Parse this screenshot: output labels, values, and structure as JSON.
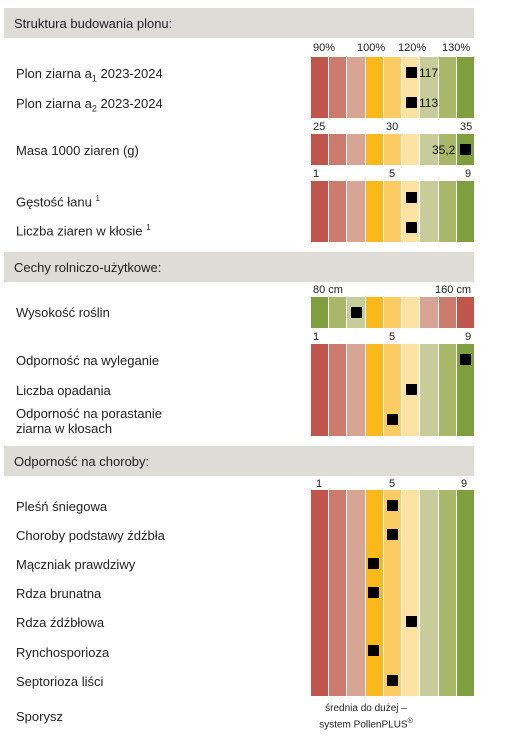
{
  "sections": [
    {
      "title": "Struktura budowania plonu:",
      "scale_labels": [
        "90%",
        "100%",
        "120%",
        "130%"
      ],
      "rows": [
        {
          "label_pre": "Plon ziarna a",
          "label_sub": "1",
          "label_post": " 2023-2024",
          "value": "117"
        },
        {
          "label_pre": "Plon ziarna a",
          "label_sub": "2",
          "label_post": " 2023-2024",
          "value": "113"
        }
      ]
    },
    {
      "scale_labels": [
        "25",
        "30",
        "35"
      ],
      "rows": [
        {
          "label": "Masa 1000 ziaren (g)",
          "value": "35,2"
        }
      ]
    },
    {
      "scale_labels": [
        "1",
        "5",
        "9"
      ],
      "rows": [
        {
          "label": "Gęstość łanu",
          "sup": "1",
          "score": 6
        },
        {
          "label": "Liczba ziaren w kłosie",
          "sup": "1",
          "score": 6
        }
      ]
    },
    {
      "title": "Cechy rolniczo-użytkowe:",
      "scale_labels": [
        "80 cm",
        "160 cm"
      ],
      "rows": [
        {
          "label": "Wysokość roślin",
          "score": 3
        }
      ]
    },
    {
      "scale_labels": [
        "1",
        "5",
        "9"
      ],
      "rows": [
        {
          "label": "Odporność na wyleganie",
          "score": 9
        },
        {
          "label": "Liczba opadania",
          "score": 6
        },
        {
          "label_line1": "Odporność na porastanie",
          "label_line2": "ziarna w kłosach",
          "score": 5
        }
      ]
    },
    {
      "title": "Odporność na choroby:",
      "scale_labels": [
        "1",
        "5",
        "9"
      ],
      "rows": [
        {
          "label": "Pleśń śniegowa",
          "score": 5
        },
        {
          "label": "Choroby podstawy źdźbła",
          "score": 5
        },
        {
          "label": "Mączniak prawdziwy",
          "score": 4
        },
        {
          "label": "Rdza brunatna",
          "score": 4
        },
        {
          "label": "Rdza źdźbłowa",
          "score": 6
        },
        {
          "label": "Rynchosporioza",
          "score": 4
        },
        {
          "label": "Septorioza liści",
          "score": 5
        },
        {
          "label": "Sporysz",
          "note_line1": "średnia do dużej –",
          "note_line2": "system PollenPLUS",
          "note_sup": "®"
        }
      ]
    }
  ],
  "colors": {
    "scale_low_to_high": [
      "#c0554b",
      "#cc7b6c",
      "#d8a496",
      "#fbb81b",
      "#fccb62",
      "#fde3a3",
      "#c6cc9a",
      "#a8b868",
      "#7f9f3f"
    ],
    "height_scale": [
      "#7f9f3f",
      "#a8b868",
      "#c6cc9a",
      "#fbb81b",
      "#fccb62",
      "#fde3a3",
      "#d8a496",
      "#cc7b6c",
      "#c0554b"
    ],
    "marker": "#000000",
    "header_bg": "#dddcd6"
  }
}
